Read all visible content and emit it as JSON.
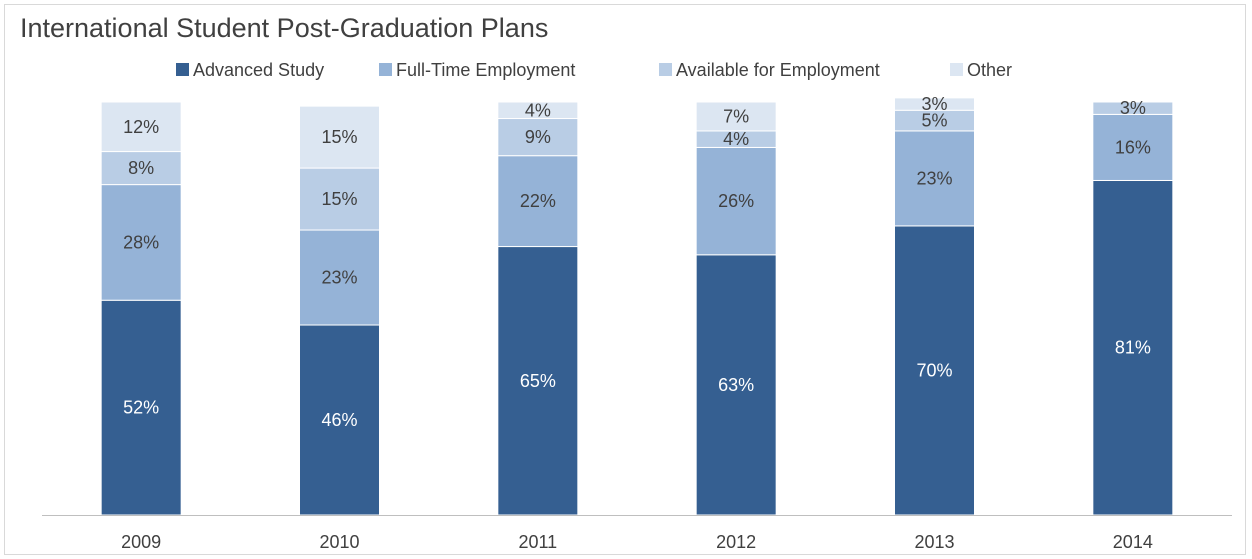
{
  "chart_data": {
    "type": "bar",
    "stacked": true,
    "normalized_percent": true,
    "title": "International Student Post-Graduation Plans",
    "xlabel": "",
    "ylabel": "",
    "categories": [
      "2009",
      "2010",
      "2011",
      "2012",
      "2013",
      "2014"
    ],
    "ylim": [
      0,
      100
    ],
    "grid": false,
    "legend_position": "top",
    "series": [
      {
        "name": "Advanced Study",
        "color": "#355f91",
        "values": [
          52,
          46,
          65,
          63,
          70,
          81
        ],
        "labels": [
          "52%",
          "46%",
          "65%",
          "63%",
          "70%",
          "81%"
        ]
      },
      {
        "name": "Full-Time Employment",
        "color": "#95b3d7",
        "values": [
          28,
          23,
          22,
          26,
          23,
          16
        ],
        "labels": [
          "28%",
          "23%",
          "22%",
          "26%",
          "23%",
          "16%"
        ]
      },
      {
        "name": "Available for Employment",
        "color": "#b9cde5",
        "values": [
          8,
          15,
          9,
          4,
          5,
          3
        ],
        "labels": [
          "8%",
          "15%",
          "9%",
          "4%",
          "5%",
          "3%"
        ]
      },
      {
        "name": "Other",
        "color": "#dce6f2",
        "values": [
          12,
          15,
          4,
          7,
          3,
          0
        ],
        "labels": [
          "12%",
          "15%",
          "4%",
          "7%",
          "3%",
          ""
        ]
      }
    ]
  }
}
